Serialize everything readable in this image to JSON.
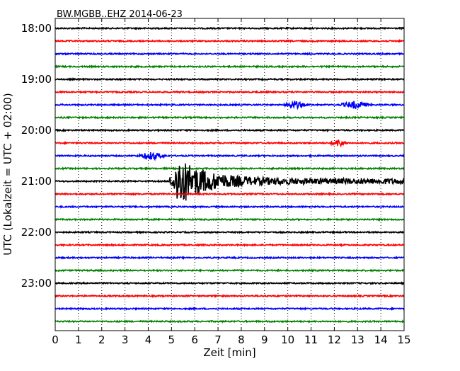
{
  "chart_data": {
    "type": "line",
    "title": "BW.MGBB..EHZ 2014-06-23",
    "xlabel": "Zeit  [min]",
    "ylabel": "UTC (Lokalzeit = UTC + 02:00)",
    "xlim": [
      0,
      15
    ],
    "x_ticks": [
      "0",
      "1",
      "2",
      "3",
      "4",
      "5",
      "6",
      "7",
      "8",
      "9",
      "10",
      "11",
      "12",
      "13",
      "14",
      "15"
    ],
    "y_tick_labels": [
      "18:00",
      "19:00",
      "20:00",
      "21:00",
      "22:00",
      "23:00"
    ],
    "trace_interval_minutes": 15,
    "trace_start": "18:00",
    "trace_end": "23:45",
    "trace_colors": [
      "#000000",
      "#ff0000",
      "#0000ff",
      "#008000"
    ],
    "grid": "vertical dotted lines at each minute",
    "events": [
      {
        "trace": "19:30",
        "start_min": 9.8,
        "end_min": 10.8,
        "amplitude": "small"
      },
      {
        "trace": "19:30",
        "start_min": 12.2,
        "end_min": 13.6,
        "amplitude": "small"
      },
      {
        "trace": "20:15",
        "start_min": 11.8,
        "end_min": 12.6,
        "amplitude": "small"
      },
      {
        "trace": "20:30",
        "start_min": 3.5,
        "end_min": 4.8,
        "amplitude": "small"
      },
      {
        "trace": "21:00",
        "start_min": 4.9,
        "end_min": 15.0,
        "amplitude": "large",
        "peak_min": 5.35
      }
    ]
  }
}
